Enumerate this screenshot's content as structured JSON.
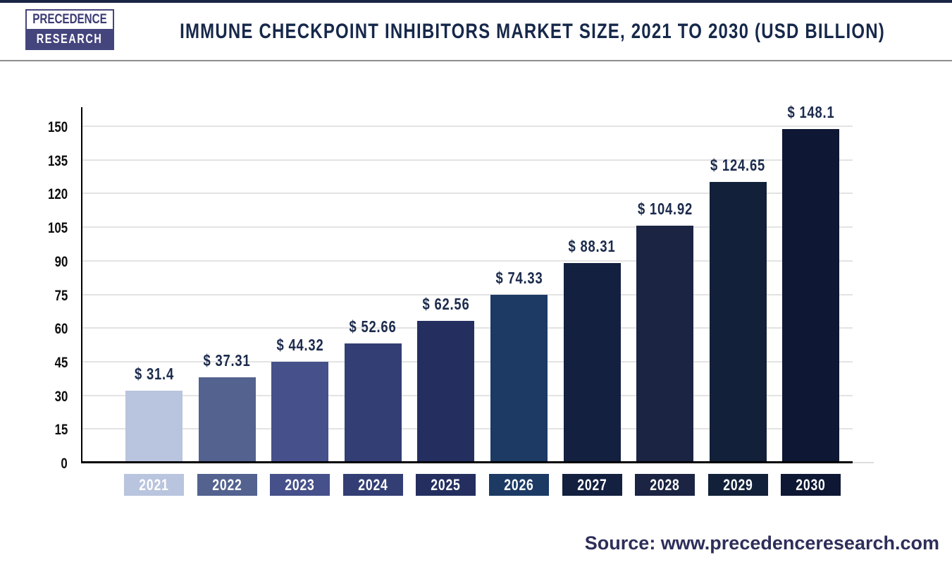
{
  "header": {
    "logo": {
      "line1": "PRECEDENCE",
      "line2": "RESEARCH",
      "navy": "#45457d"
    },
    "title": "IMMUNE CHECKPOINT INHIBITORS MARKET SIZE, 2021 TO 2030 (USD BILLION)",
    "title_color": "#16284a"
  },
  "chart_data": {
    "type": "bar",
    "title": "Immune Checkpoint Inhibitors Market Size, 2021 to 2030 (USD Billion)",
    "categories": [
      "2021",
      "2022",
      "2023",
      "2024",
      "2025",
      "2026",
      "2027",
      "2028",
      "2029",
      "2030"
    ],
    "values": [
      31.4,
      37.31,
      44.32,
      52.66,
      62.56,
      74.33,
      88.31,
      104.92,
      124.65,
      148.1
    ],
    "value_labels": [
      "$ 31.4",
      "$ 37.31",
      "$ 44.32",
      "$ 52.66",
      "$ 62.56",
      "$ 74.33",
      "$ 88.31",
      "$ 104.92",
      "$ 124.65",
      "$ 148.1"
    ],
    "bar_colors": [
      "#b9c4de",
      "#53628f",
      "#46508a",
      "#333e74",
      "#242f60",
      "#1c3a64",
      "#13203f",
      "#1b2442",
      "#122039",
      "#0e1733"
    ],
    "yticks": [
      0,
      15,
      30,
      45,
      60,
      75,
      90,
      105,
      120,
      135,
      150
    ],
    "ylim": [
      0,
      150
    ],
    "xlabel": "",
    "ylabel": "",
    "grid": "horizontal",
    "legend": "none",
    "value_label_color": "#1b2a4c",
    "axis_color": "#000000",
    "grid_color": "#e3e3e3",
    "tick_label_color": "#0d0d0d",
    "category_label_text_color": "#ffffff"
  },
  "footer": {
    "source": "Source: www.precedenceresearch.com",
    "source_color": "#2e2e5a"
  }
}
